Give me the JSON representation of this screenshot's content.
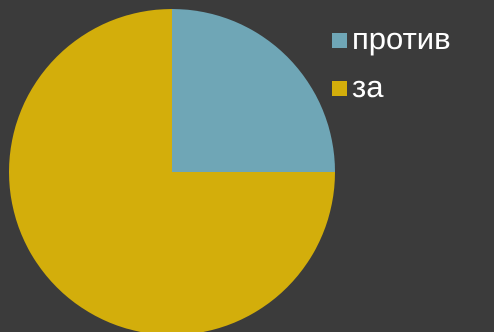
{
  "chart_data": {
    "type": "pie",
    "categories": [
      "против",
      "за"
    ],
    "values": [
      25,
      75
    ],
    "colors": [
      "#6fa6b6",
      "#d3ae0b"
    ],
    "start_angle": 0,
    "direction": "clockwise",
    "legend": "top-right"
  }
}
